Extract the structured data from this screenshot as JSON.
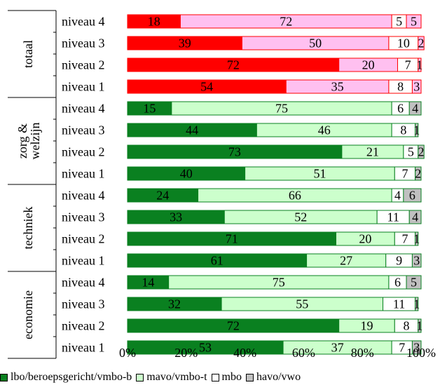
{
  "chart_data": {
    "type": "bar",
    "orientation": "horizontal",
    "stacked": "percent",
    "title": "",
    "xlabel": "",
    "ylabel": "",
    "xlim": [
      0,
      100
    ],
    "x_ticks": [
      "0%",
      "20%",
      "40%",
      "60%",
      "80%",
      "100%"
    ],
    "grid": false,
    "legend_position": "bottom",
    "series": [
      {
        "name": "lbo/beroepsgericht/vmbo-b",
        "key": "s0"
      },
      {
        "name": "mavo/vmbo-t",
        "key": "s1"
      },
      {
        "name": "mbo",
        "key": "s2"
      },
      {
        "name": "havo/vwo",
        "key": "s3"
      }
    ],
    "groups": [
      {
        "label": "totaal",
        "colors": [
          "#ff0000",
          "#ffc0f0",
          "#ffffff",
          "#ffc0f0"
        ],
        "border": "#ff0000",
        "rows": [
          {
            "label": "niveau 4",
            "values": [
              18,
              72,
              5,
              5
            ]
          },
          {
            "label": "niveau 3",
            "values": [
              39,
              50,
              10,
              2
            ]
          },
          {
            "label": "niveau 2",
            "values": [
              72,
              20,
              7,
              1
            ]
          },
          {
            "label": "niveau 1",
            "values": [
              54,
              35,
              8,
              3
            ]
          }
        ]
      },
      {
        "label": "zorg & welzijn",
        "colors": [
          "#0a8020",
          "#ccffcc",
          "#ffffff",
          "#c0c0c0"
        ],
        "border": "#0a8020",
        "rows": [
          {
            "label": "niveau 4",
            "values": [
              15,
              75,
              6,
              4
            ]
          },
          {
            "label": "niveau 3",
            "values": [
              44,
              46,
              8,
              1
            ]
          },
          {
            "label": "niveau 2",
            "values": [
              73,
              21,
              5,
              2
            ]
          },
          {
            "label": "niveau 1",
            "values": [
              40,
              51,
              7,
              2
            ]
          }
        ]
      },
      {
        "label": "techniek",
        "colors": [
          "#0a8020",
          "#ccffcc",
          "#ffffff",
          "#c0c0c0"
        ],
        "border": "#0a8020",
        "rows": [
          {
            "label": "niveau 4",
            "values": [
              24,
              66,
              4,
              6
            ]
          },
          {
            "label": "niveau 3",
            "values": [
              33,
              52,
              11,
              4
            ]
          },
          {
            "label": "niveau 2",
            "values": [
              71,
              20,
              7,
              1
            ]
          },
          {
            "label": "niveau 1",
            "values": [
              61,
              27,
              9,
              3
            ]
          }
        ]
      },
      {
        "label": "economie",
        "colors": [
          "#0a8020",
          "#ccffcc",
          "#ffffff",
          "#c0c0c0"
        ],
        "border": "#0a8020",
        "rows": [
          {
            "label": "niveau 4",
            "values": [
              14,
              75,
              6,
              5
            ]
          },
          {
            "label": "niveau 3",
            "values": [
              32,
              55,
              11,
              1
            ]
          },
          {
            "label": "niveau 2",
            "values": [
              72,
              19,
              8,
              1
            ]
          },
          {
            "label": "niveau 1",
            "values": [
              53,
              37,
              7,
              3
            ]
          }
        ]
      }
    ]
  },
  "legend": {
    "items": [
      {
        "label": "lbo/beroepsgericht/vmbo-b",
        "color": "#0a8020"
      },
      {
        "label": "mavo/vmbo-t",
        "color": "#ccffcc"
      },
      {
        "label": "mbo",
        "color": "#ffffff"
      },
      {
        "label": "havo/vwo",
        "color": "#c0c0c0"
      }
    ]
  }
}
